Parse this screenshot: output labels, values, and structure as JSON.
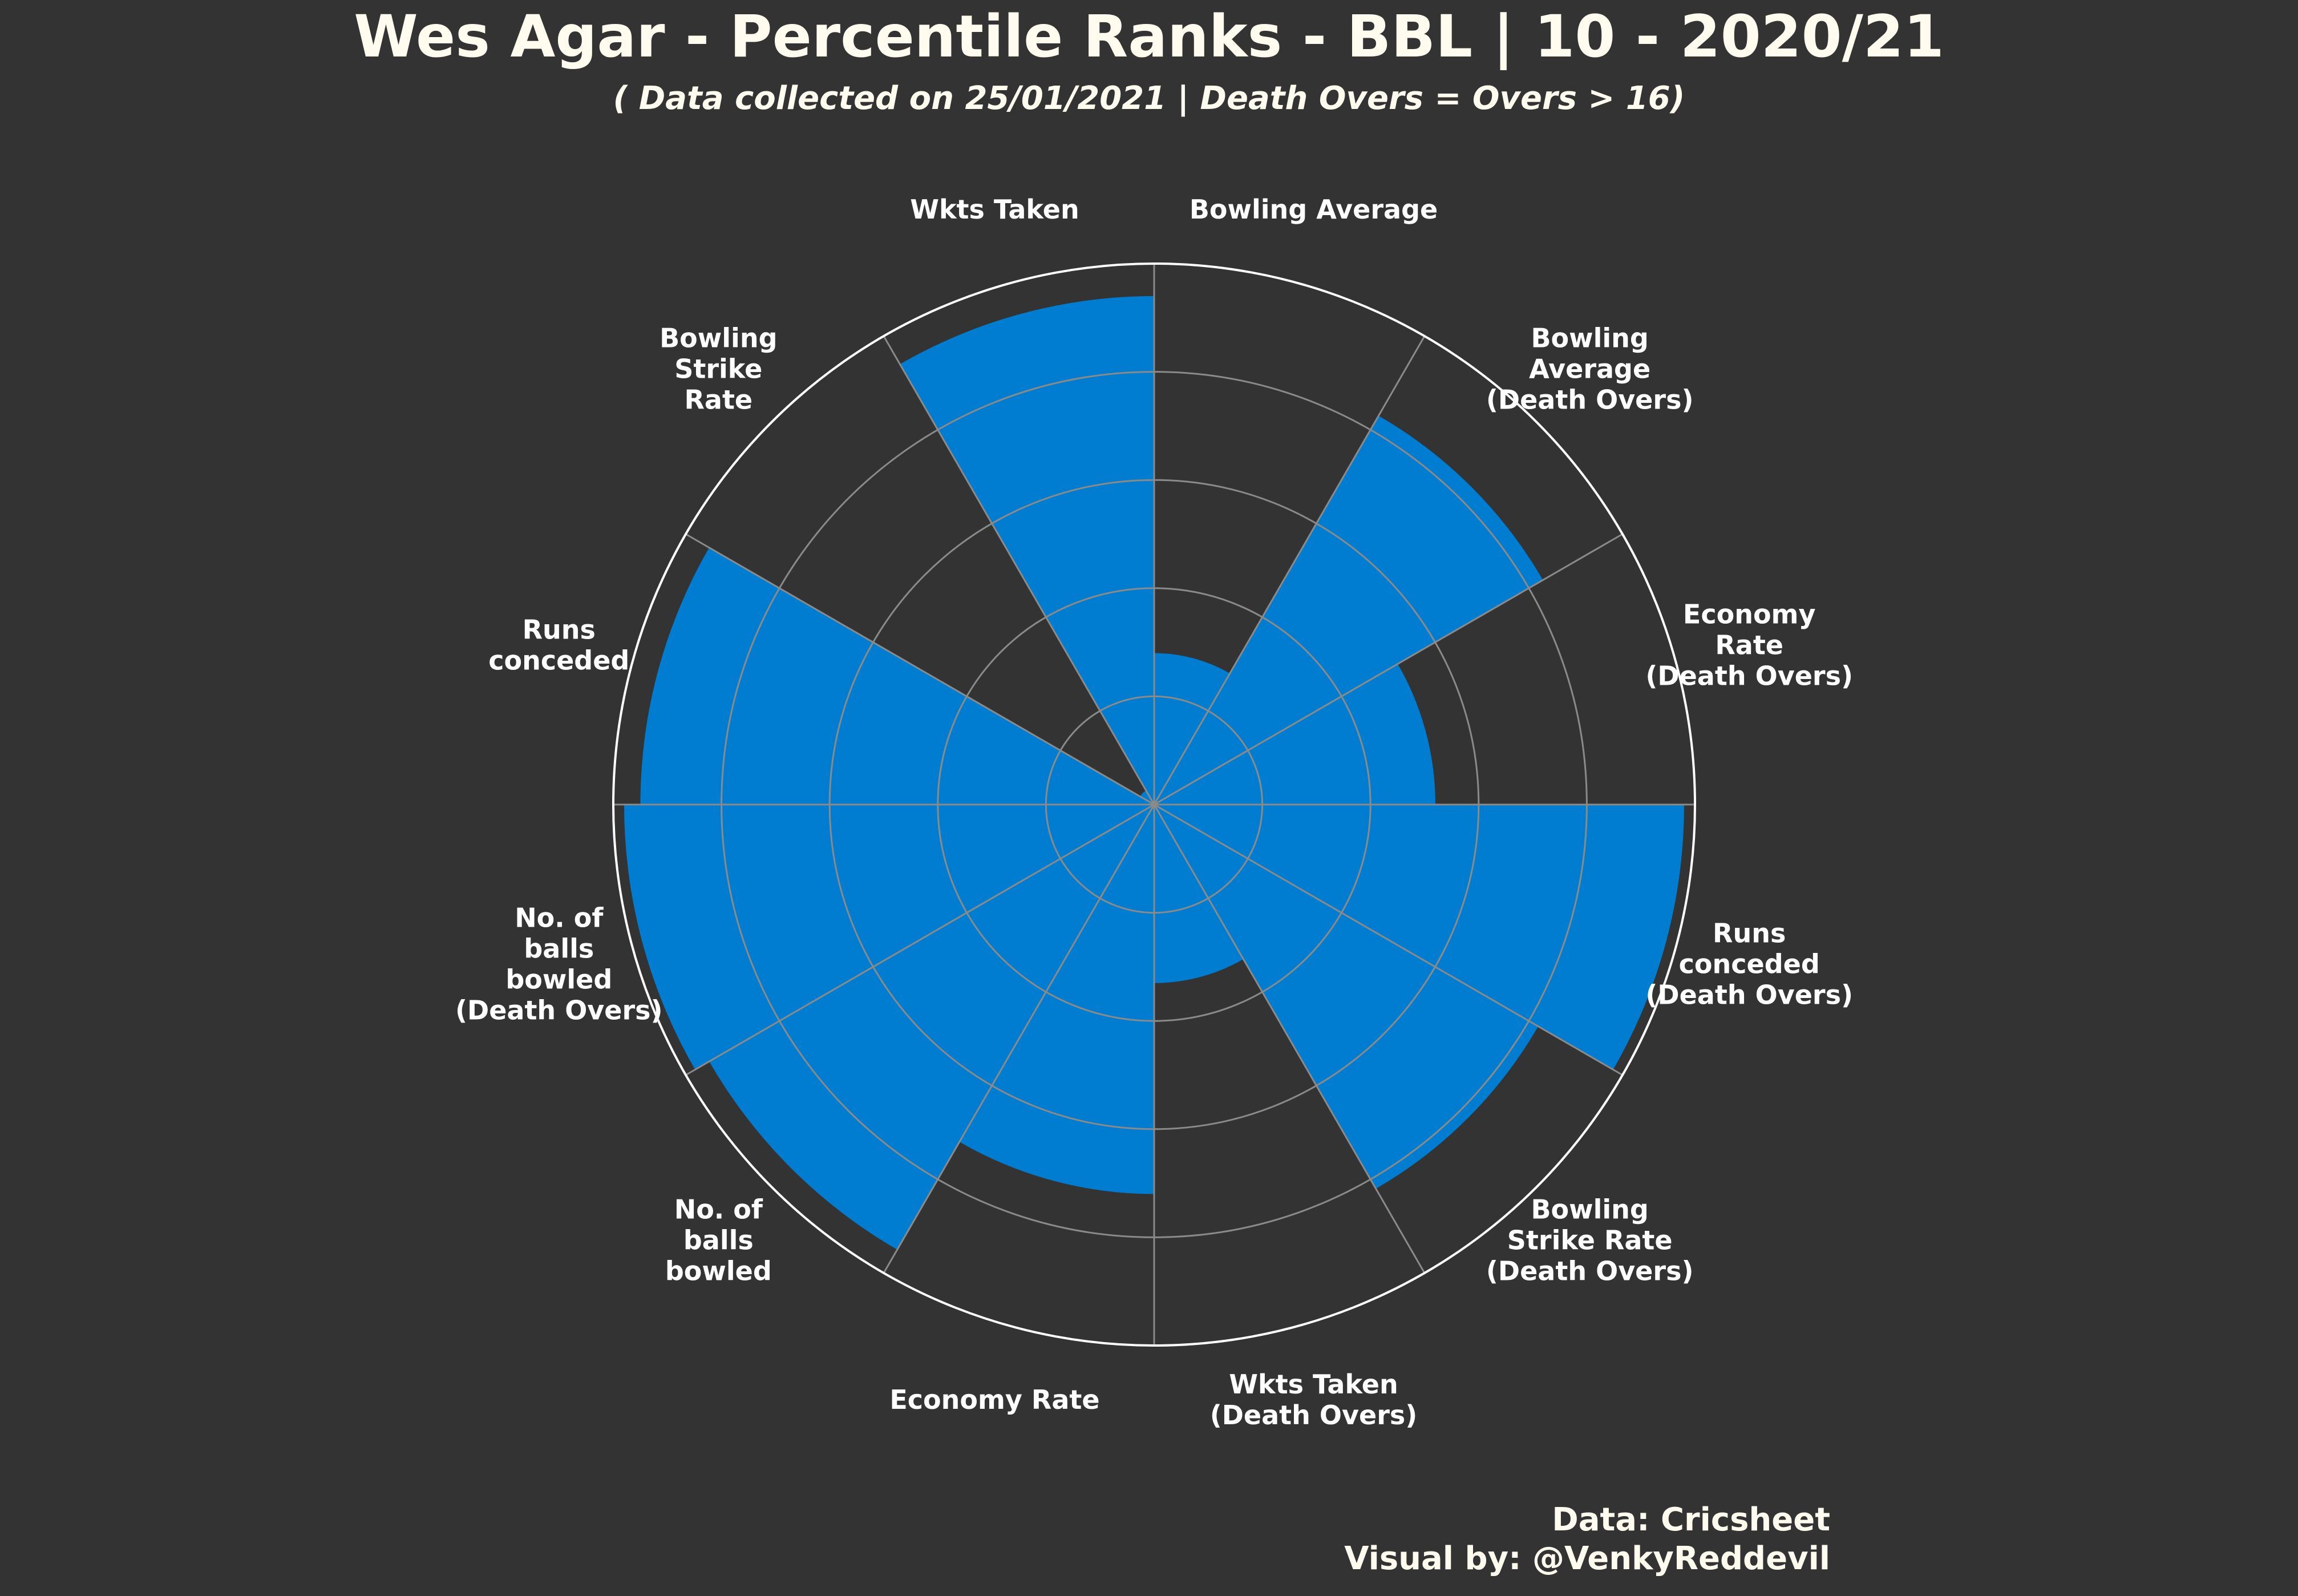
{
  "title": "Wes Agar - Percentile Ranks - BBL | 10 - 2020/21",
  "subtitle": "( Data collected on 25/01/2021 | Death Overs = Overs > 16)",
  "credits": {
    "data": "Data: Cricsheet",
    "visual": "Visual by: @VenkyReddevil"
  },
  "colors": {
    "background": "#333333",
    "bar": "#007dd1",
    "outline": "#ffffff",
    "grid": "#8a8a8a"
  },
  "chart_data": {
    "type": "polar-bar",
    "title": "Wes Agar - Percentile Ranks - BBL | 10 - 2020/21",
    "rlim": [
      0,
      100
    ],
    "grid": true,
    "categories": [
      "Bowling Average",
      "Bowling Average (Death Overs)",
      "Economy Rate (Death Overs)",
      "Runs conceded (Death Overs)",
      "Bowling Strike Rate (Death Overs)",
      "Wkts Taken (Death Overs)",
      "Economy Rate",
      "No. of balls bowled",
      "No. of balls bowled (Death Overs)",
      "Runs conceded",
      "Bowling Strike Rate",
      "Wkts Taken"
    ],
    "label_lines": [
      [
        "Bowling Average"
      ],
      [
        "Bowling",
        "Average",
        "(Death Overs)"
      ],
      [
        "Economy",
        "Rate",
        "(Death Overs)"
      ],
      [
        "Runs",
        "conceded",
        "(Death Overs)"
      ],
      [
        "Bowling",
        "Strike Rate",
        "(Death Overs)"
      ],
      [
        "Wkts Taken",
        "(Death Overs)"
      ],
      [
        "Economy Rate"
      ],
      [
        "No. of",
        "balls",
        "bowled"
      ],
      [
        "No. of",
        "balls",
        "bowled",
        "(Death Overs)"
      ],
      [
        "Runs",
        "conceded"
      ],
      [
        "Bowling",
        "Strike",
        "Rate"
      ],
      [
        "Wkts Taken"
      ]
    ],
    "values": [
      28,
      83,
      52,
      98,
      82,
      33,
      72,
      95,
      98,
      95,
      3,
      94
    ]
  }
}
